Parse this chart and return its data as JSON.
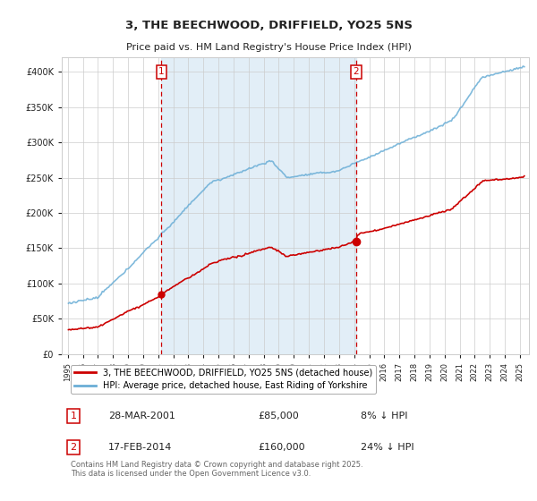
{
  "title": "3, THE BEECHWOOD, DRIFFIELD, YO25 5NS",
  "subtitle": "Price paid vs. HM Land Registry's House Price Index (HPI)",
  "hpi_label": "HPI: Average price, detached house, East Riding of Yorkshire",
  "property_label": "3, THE BEECHWOOD, DRIFFIELD, YO25 5NS (detached house)",
  "footer": "Contains HM Land Registry data © Crown copyright and database right 2025.\nThis data is licensed under the Open Government Licence v3.0.",
  "sale1_date": "28-MAR-2001",
  "sale1_price": 85000,
  "sale1_label": "£85,000",
  "sale1_pct": "8% ↓ HPI",
  "sale2_date": "17-FEB-2014",
  "sale2_price": 160000,
  "sale2_label": "£160,000",
  "sale2_pct": "24% ↓ HPI",
  "ylim": [
    0,
    420000
  ],
  "yticks": [
    0,
    50000,
    100000,
    150000,
    200000,
    250000,
    300000,
    350000,
    400000
  ],
  "hpi_color": "#6aaed6",
  "hpi_fill_color": "#d6e8f5",
  "property_color": "#cc0000",
  "sale_line_color": "#cc0000",
  "background_color": "#ffffff",
  "grid_color": "#cccccc",
  "sale1_x": 2001.22,
  "sale2_x": 2014.12
}
